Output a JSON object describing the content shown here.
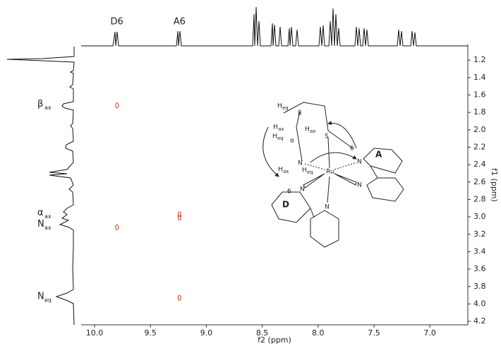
{
  "chart_data": {
    "type": "contour2d",
    "xlabel": "f2 (ppm)",
    "ylabel": "f1 (ppm)",
    "xlim": [
      10.12,
      6.66
    ],
    "xticks": [
      {
        "value": 10.0,
        "label": "10.0"
      },
      9.5,
      {
        "value": 9.0,
        "label": "9.0"
      },
      8.5,
      {
        "value": 8.0,
        "label": "8.0"
      },
      7.5,
      {
        "value": 7.0,
        "label": "7.0"
      }
    ],
    "ylim": [
      1.02,
      4.24
    ],
    "yticks": [
      1.2,
      1.4,
      1.6,
      1.8,
      {
        "value": 2.0,
        "label": "2.0"
      },
      2.2,
      2.4,
      2.6,
      2.8,
      {
        "value": 3.0,
        "label": "3.0"
      },
      3.2,
      3.4,
      3.6,
      3.8,
      {
        "value": 4.0,
        "label": "4.0"
      },
      4.2
    ],
    "color": "#d9341f",
    "peaks": {
      "x": [
        9.8,
        9.24,
        9.24,
        9.8,
        9.24
      ],
      "y": [
        1.72,
        2.97,
        3.01,
        3.12,
        3.93
      ]
    },
    "column_labels": {
      "labels": [
        "D6",
        "A6"
      ],
      "x": [
        9.8,
        9.24
      ]
    },
    "row_labels": {
      "labels": [
        {
          "text": "β",
          "sub": "ax"
        },
        {
          "text": "α",
          "sub": "ax"
        },
        {
          "text": "N",
          "sub": "ax"
        },
        {
          "text": "N",
          "sub": "eq"
        }
      ],
      "y": [
        1.72,
        2.97,
        3.1,
        3.93
      ]
    },
    "structure": [
      {
        "text": "H",
        "sub": "eq"
      },
      {
        "text": "β"
      },
      {
        "text": "H",
        "sub": "ax"
      },
      {
        "text": "H",
        "sub": "ax"
      },
      {
        "text": "H",
        "sub": "eq"
      },
      {
        "text": "α"
      },
      {
        "text": "S"
      },
      {
        "text": "6"
      },
      {
        "text": "N"
      },
      {
        "text": "H",
        "sub": "ax"
      },
      {
        "text": "H",
        "sub": "eq"
      },
      {
        "text": "Ru"
      },
      {
        "text": "N"
      },
      {
        "text": "A"
      },
      {
        "text": "N"
      },
      {
        "text": "6"
      },
      {
        "text": "N"
      },
      {
        "text": "D"
      },
      {
        "text": "N"
      }
    ]
  }
}
